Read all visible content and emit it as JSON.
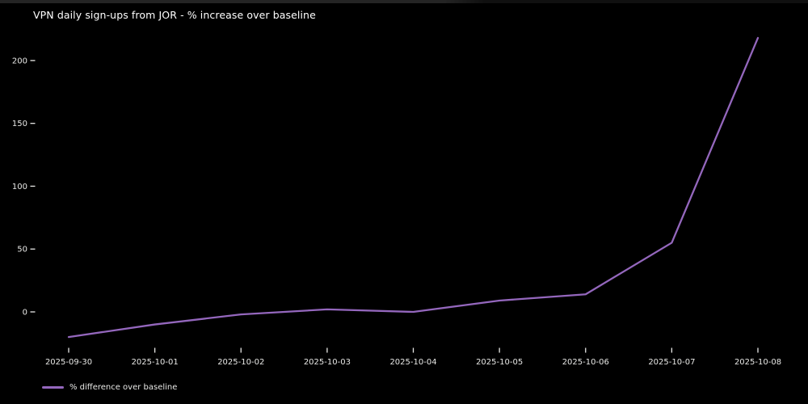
{
  "figure": {
    "title": "VPN daily sign-ups from JOR - % increase over baseline",
    "background_color": "#000000",
    "text_color": "#e8e8e6"
  },
  "legend": {
    "label": "% difference over baseline",
    "swatch_color": "#9467bd"
  },
  "chart_data": {
    "type": "line",
    "title": "VPN daily sign-ups from JOR - % increase over baseline",
    "categories": [
      "2025-09-30",
      "2025-10-01",
      "2025-10-02",
      "2025-10-03",
      "2025-10-04",
      "2025-10-05",
      "2025-10-06",
      "2025-10-07",
      "2025-10-08"
    ],
    "series": [
      {
        "name": "% difference over baseline",
        "values": [
          -20,
          -10,
          -2,
          2,
          0,
          9,
          14,
          55,
          218
        ]
      }
    ],
    "xlabel": "",
    "ylabel": "",
    "yticks": [
      0,
      50,
      100,
      150,
      200
    ],
    "ylim": [
      -28,
      222
    ],
    "grid": false,
    "legend_position": "bottom-left",
    "line_color": "#9467bd",
    "tick_color": "#e8e8e6",
    "background": "#000000"
  }
}
